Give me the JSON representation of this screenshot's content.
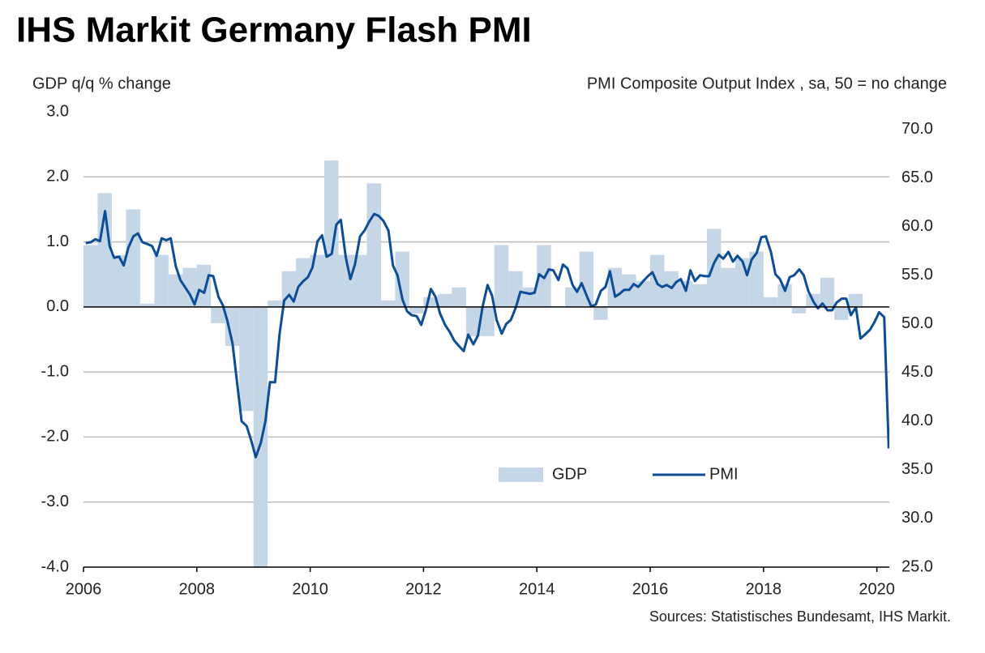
{
  "chart_data": {
    "type": "combo",
    "title": "IHS Markit Germany Flash PMI",
    "y_label": "GDP q/q % change",
    "y2_label": "PMI Composite  Output Index , sa, 50 = no change",
    "source": "Sources: Statistisches Bundesamt, IHS Markit.",
    "xlim": [
      2006,
      2020.22
    ],
    "xticks": [
      2006,
      2008,
      2010,
      2012,
      2014,
      2016,
      2018,
      2020
    ],
    "ylim": [
      -4,
      3
    ],
    "yticks": [
      {
        "value": 3,
        "label": "3.0"
      },
      {
        "value": 2,
        "label": "2.0"
      },
      {
        "value": 1,
        "label": "1.0"
      },
      {
        "value": 0,
        "label": "0.0"
      },
      {
        "value": -1,
        "label": "-1.0"
      },
      {
        "value": -2,
        "label": "-2.0"
      },
      {
        "value": -3,
        "label": "-3.0"
      },
      {
        "value": -4,
        "label": "-4.0"
      }
    ],
    "y2lim": [
      25,
      71.8
    ],
    "y2ticks": [
      {
        "value": 70,
        "label": "70.0"
      },
      {
        "value": 65,
        "label": "65.0"
      },
      {
        "value": 60,
        "label": "60.0"
      },
      {
        "value": 55,
        "label": "55.0"
      },
      {
        "value": 50,
        "label": "50.0"
      },
      {
        "value": 45,
        "label": "45.0"
      },
      {
        "value": 40,
        "label": "40.0"
      },
      {
        "value": 35,
        "label": "35.0"
      },
      {
        "value": 30,
        "label": "30.0"
      },
      {
        "value": 25,
        "label": "25.0"
      }
    ],
    "grid": true,
    "series": [
      {
        "name": "GDP",
        "type": "bar",
        "color": "#c5d6e6",
        "x": [
          2006.125,
          2006.375,
          2006.625,
          2006.875,
          2007.125,
          2007.375,
          2007.625,
          2007.875,
          2008.125,
          2008.375,
          2008.625,
          2008.875,
          2009.125,
          2009.375,
          2009.625,
          2009.875,
          2010.125,
          2010.375,
          2010.625,
          2010.875,
          2011.125,
          2011.375,
          2011.625,
          2011.875,
          2012.125,
          2012.375,
          2012.625,
          2012.875,
          2013.125,
          2013.375,
          2013.625,
          2013.875,
          2014.125,
          2014.375,
          2014.625,
          2014.875,
          2015.125,
          2015.375,
          2015.625,
          2015.875,
          2016.125,
          2016.375,
          2016.625,
          2016.875,
          2017.125,
          2017.375,
          2017.625,
          2017.875,
          2018.125,
          2018.375,
          2018.625,
          2018.875,
          2019.125,
          2019.375,
          2019.625,
          2019.875
        ],
        "values": [
          0.95,
          1.75,
          0.8,
          1.5,
          0.05,
          0.8,
          0.5,
          0.6,
          0.65,
          -0.25,
          -0.6,
          -1.6,
          -4.5,
          0.1,
          0.55,
          0.75,
          0.8,
          2.25,
          0.8,
          0.8,
          1.9,
          0.1,
          0.85,
          -0.1,
          0.15,
          0.2,
          0.3,
          -0.45,
          -0.45,
          0.95,
          0.55,
          0.3,
          0.95,
          0.0,
          0.3,
          0.85,
          -0.2,
          0.6,
          0.5,
          0.4,
          0.8,
          0.55,
          0.4,
          0.35,
          1.2,
          0.6,
          0.75,
          0.85,
          0.15,
          0.35,
          -0.1,
          0.2,
          0.45,
          -0.2,
          0.2,
          0.0
        ]
      },
      {
        "name": "PMI",
        "type": "line",
        "axis": "y2",
        "color": "#0b4d96",
        "x": [
          2006.04,
          2006.13,
          2006.21,
          2006.29,
          2006.38,
          2006.46,
          2006.54,
          2006.63,
          2006.71,
          2006.79,
          2006.88,
          2006.96,
          2007.04,
          2007.13,
          2007.21,
          2007.29,
          2007.38,
          2007.46,
          2007.54,
          2007.63,
          2007.71,
          2007.79,
          2007.88,
          2007.96,
          2008.04,
          2008.13,
          2008.21,
          2008.29,
          2008.38,
          2008.46,
          2008.54,
          2008.63,
          2008.71,
          2008.79,
          2008.88,
          2008.96,
          2009.04,
          2009.13,
          2009.21,
          2009.29,
          2009.38,
          2009.46,
          2009.54,
          2009.63,
          2009.71,
          2009.79,
          2009.88,
          2009.96,
          2010.04,
          2010.13,
          2010.21,
          2010.29,
          2010.38,
          2010.46,
          2010.54,
          2010.63,
          2010.71,
          2010.79,
          2010.88,
          2010.96,
          2011.04,
          2011.13,
          2011.21,
          2011.29,
          2011.38,
          2011.46,
          2011.54,
          2011.63,
          2011.71,
          2011.79,
          2011.88,
          2011.96,
          2012.04,
          2012.13,
          2012.21,
          2012.29,
          2012.38,
          2012.46,
          2012.54,
          2012.63,
          2012.71,
          2012.79,
          2012.88,
          2012.96,
          2013.04,
          2013.13,
          2013.21,
          2013.29,
          2013.38,
          2013.46,
          2013.54,
          2013.63,
          2013.71,
          2013.79,
          2013.88,
          2013.96,
          2014.04,
          2014.13,
          2014.21,
          2014.29,
          2014.38,
          2014.46,
          2014.54,
          2014.63,
          2014.71,
          2014.79,
          2014.88,
          2014.96,
          2015.04,
          2015.13,
          2015.21,
          2015.29,
          2015.38,
          2015.46,
          2015.54,
          2015.63,
          2015.71,
          2015.79,
          2015.88,
          2015.96,
          2016.04,
          2016.13,
          2016.21,
          2016.29,
          2016.38,
          2016.46,
          2016.54,
          2016.63,
          2016.71,
          2016.79,
          2016.88,
          2016.96,
          2017.04,
          2017.13,
          2017.21,
          2017.29,
          2017.38,
          2017.46,
          2017.54,
          2017.63,
          2017.71,
          2017.79,
          2017.88,
          2017.96,
          2018.04,
          2018.13,
          2018.21,
          2018.29,
          2018.38,
          2018.46,
          2018.54,
          2018.63,
          2018.71,
          2018.79,
          2018.88,
          2018.96,
          2019.04,
          2019.13,
          2019.21,
          2019.29,
          2019.38,
          2019.46,
          2019.54,
          2019.63,
          2019.71,
          2019.79,
          2019.88,
          2019.96,
          2020.04,
          2020.13,
          2020.21
        ],
        "values": [
          58.3,
          58.4,
          58.7,
          58.5,
          61.6,
          58.0,
          56.8,
          56.9,
          56.0,
          57.8,
          59.0,
          59.3,
          58.4,
          58.2,
          58.0,
          57.0,
          58.8,
          58.6,
          58.8,
          55.9,
          54.5,
          53.8,
          53.0,
          52.0,
          53.5,
          53.2,
          55.0,
          54.9,
          52.8,
          51.9,
          50.3,
          48.0,
          44.0,
          40.0,
          39.5,
          38.0,
          36.3,
          37.8,
          40.0,
          44.0,
          44.0,
          49.0,
          52.4,
          53.0,
          52.3,
          53.8,
          54.4,
          54.8,
          55.8,
          58.5,
          59.1,
          56.9,
          57.2,
          60.2,
          60.7,
          56.8,
          54.6,
          56.1,
          59.0,
          59.6,
          60.5,
          61.3,
          61.1,
          60.6,
          59.6,
          56.0,
          55.0,
          52.5,
          51.3,
          50.9,
          50.8,
          49.9,
          51.4,
          53.6,
          52.8,
          51.1,
          49.9,
          49.2,
          48.3,
          47.7,
          47.2,
          48.9,
          47.9,
          48.8,
          51.7,
          54.0,
          52.9,
          50.4,
          49.0,
          50.0,
          50.4,
          51.7,
          53.3,
          53.2,
          53.1,
          53.2,
          55.1,
          54.7,
          55.6,
          55.5,
          54.5,
          56.1,
          55.7,
          54.0,
          53.3,
          54.2,
          52.9,
          51.8,
          52.0,
          53.4,
          53.8,
          55.4,
          52.8,
          53.1,
          53.5,
          53.5,
          54.1,
          53.8,
          54.4,
          54.9,
          55.3,
          54.1,
          53.8,
          54.0,
          53.7,
          54.3,
          54.6,
          53.4,
          55.5,
          54.4,
          55.0,
          54.9,
          54.9,
          56.3,
          57.1,
          56.7,
          57.4,
          56.4,
          57.0,
          56.4,
          55.0,
          56.6,
          57.3,
          58.9,
          59.0,
          57.4,
          55.1,
          54.6,
          53.4,
          54.8,
          55.0,
          55.6,
          55.0,
          53.4,
          52.3,
          51.6,
          52.1,
          51.4,
          51.4,
          52.2,
          52.6,
          52.6,
          50.9,
          51.7,
          48.5,
          48.9,
          49.4,
          50.2,
          51.2,
          50.7,
          37.2
        ]
      }
    ]
  }
}
